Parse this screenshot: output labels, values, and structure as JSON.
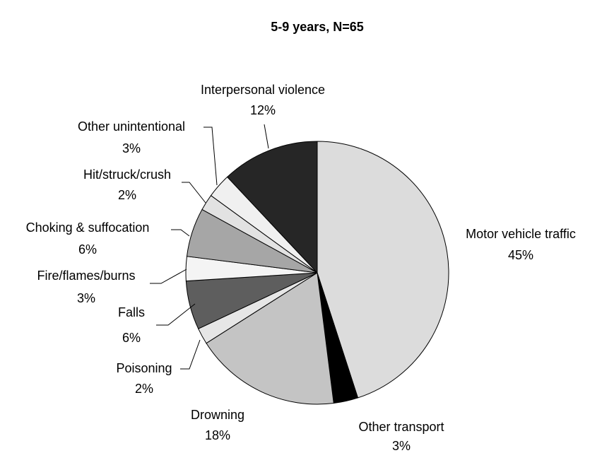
{
  "chart_data": {
    "type": "pie",
    "title": "5-9 years, N=65",
    "categories": [
      "Motor vehicle traffic",
      "Other transport",
      "Drowning",
      "Poisoning",
      "Falls",
      "Fire/flames/burns",
      "Choking & suffocation",
      "Hit/struck/crush",
      "Other unintentional",
      "Interpersonal violence"
    ],
    "values": [
      45,
      3,
      18,
      2,
      6,
      3,
      6,
      2,
      3,
      12
    ],
    "value_labels": [
      "45%",
      "3%",
      "18%",
      "2%",
      "6%",
      "3%",
      "6%",
      "2%",
      "3%",
      "12%"
    ],
    "colors": [
      "#dcdcdc",
      "#000000",
      "#c4c4c4",
      "#e6e6e6",
      "#5e5e5e",
      "#f4f4f4",
      "#a6a6a6",
      "#e2e2e2",
      "#f0f0f0",
      "#262626"
    ]
  }
}
